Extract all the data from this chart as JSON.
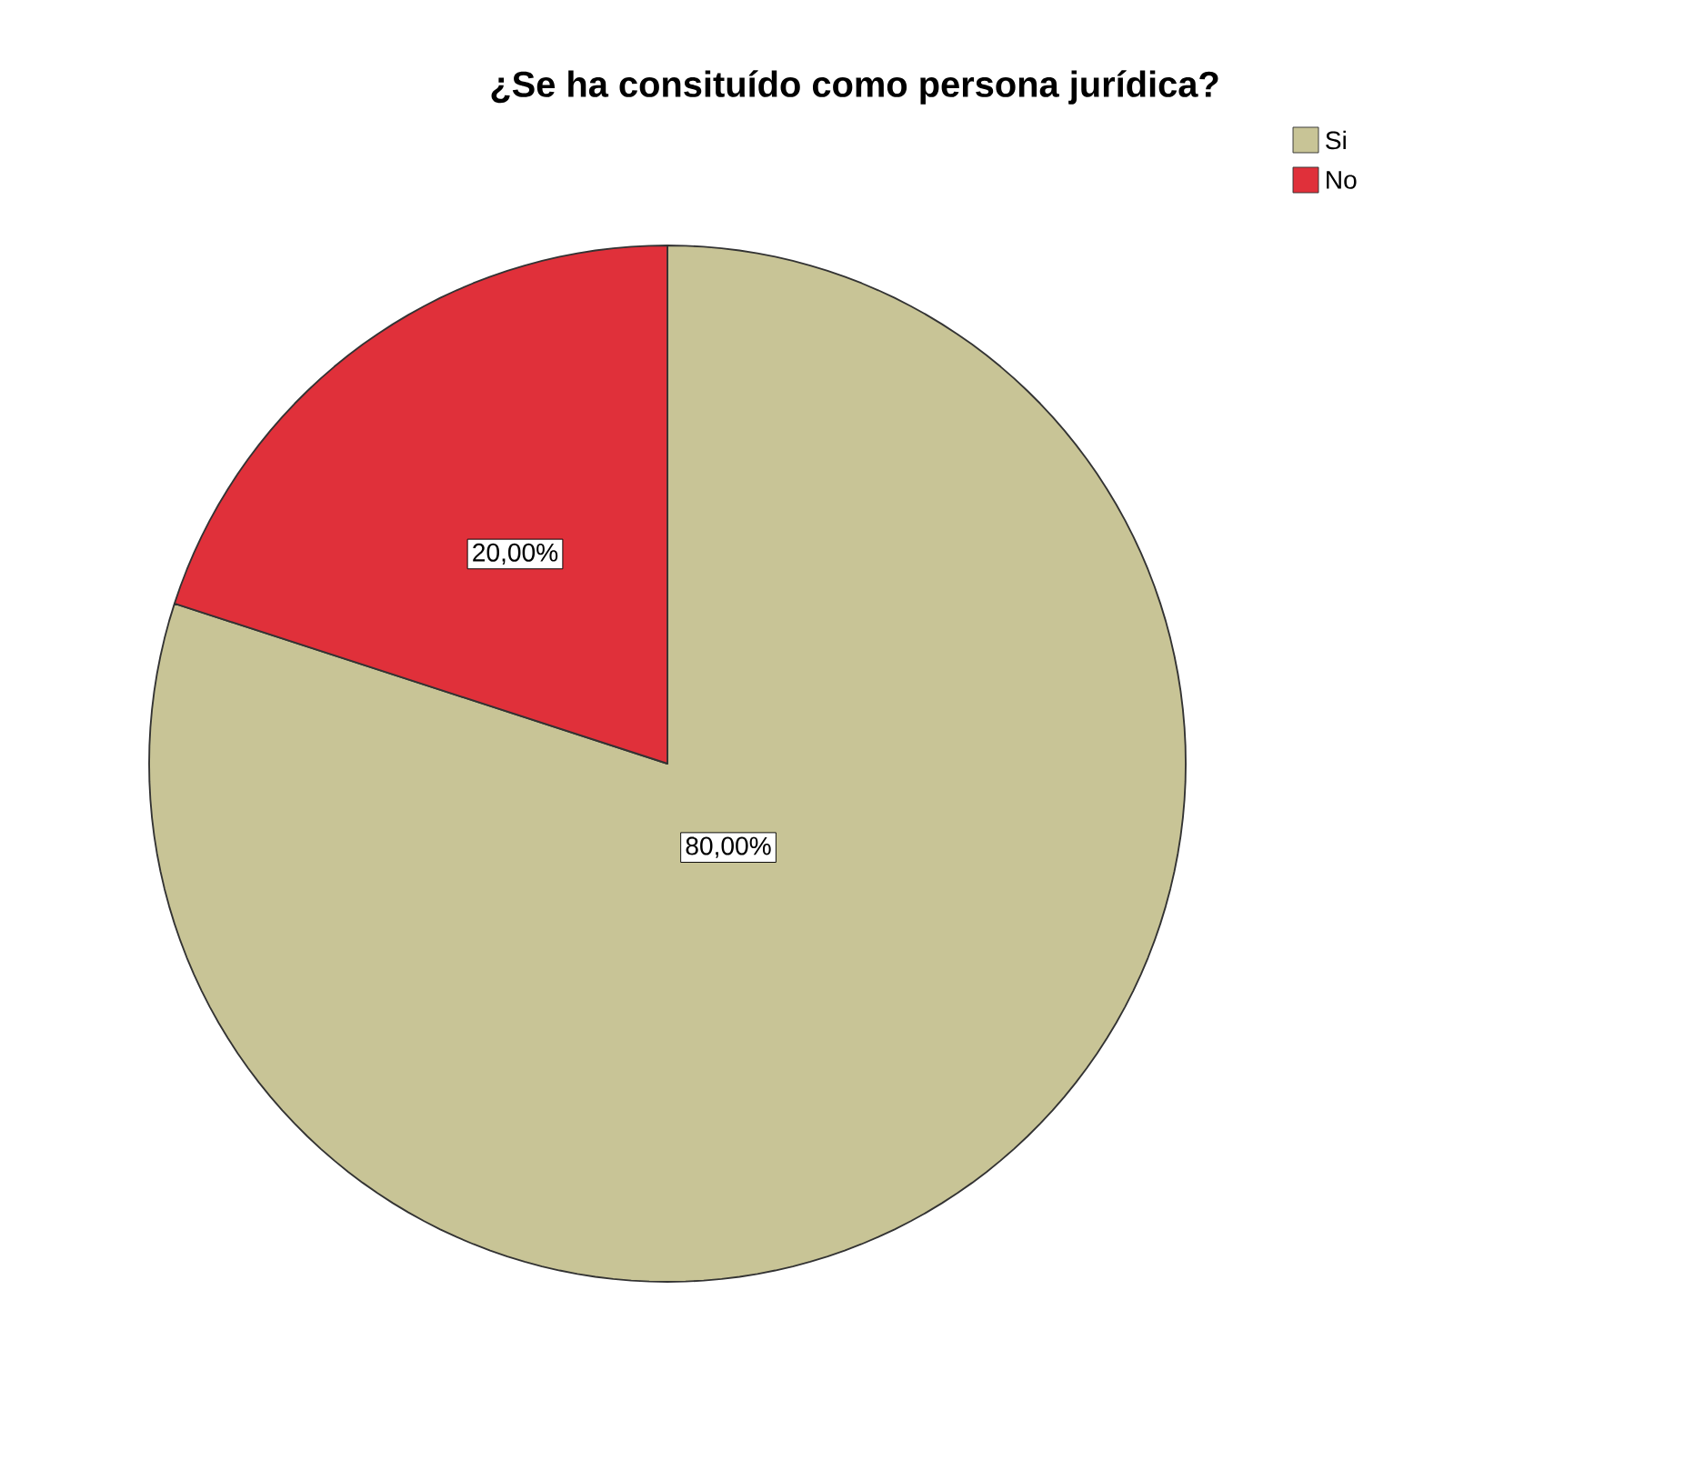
{
  "chart_data": {
    "type": "pie",
    "title": "¿Se ha consituído como persona jurídica?",
    "categories": [
      "Si",
      "No"
    ],
    "values": [
      80,
      20
    ],
    "colors": [
      "#c8c496",
      "#e0303a"
    ],
    "value_labels": [
      "80,00%",
      "20,00%"
    ],
    "legend": "top right"
  }
}
